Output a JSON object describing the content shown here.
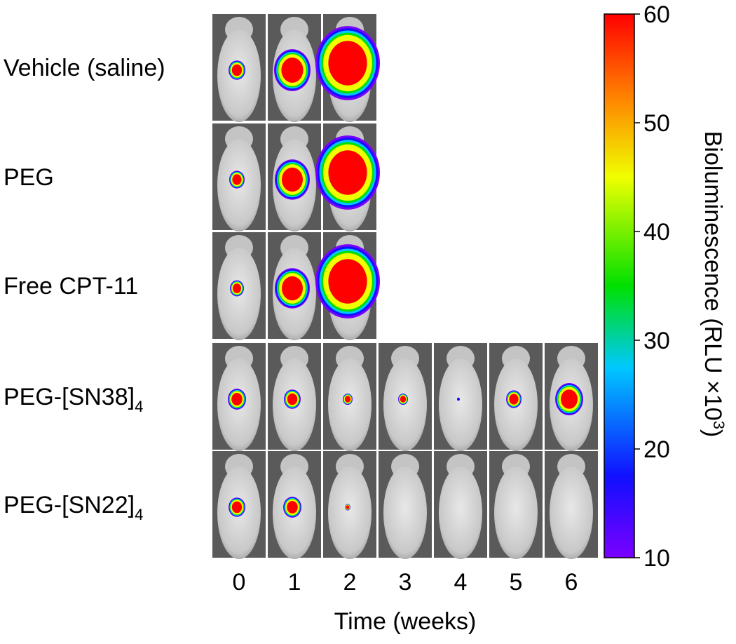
{
  "rows": [
    {
      "label": {
        "text": "Vehicle (saline)"
      }
    },
    {
      "label": {
        "text": "PEG"
      }
    },
    {
      "label": {
        "text": "Free CPT-11"
      }
    },
    {
      "label": {
        "text": "PEG-[SN38]",
        "subscript": "4"
      }
    },
    {
      "label": {
        "text": "PEG-[SN22]",
        "subscript": "4"
      }
    }
  ],
  "x_axis": {
    "label": "Time (weeks)",
    "ticks": [
      0,
      1,
      2,
      3,
      4,
      5,
      6
    ]
  },
  "colorbar": {
    "label": "Bioluminescence (RLU ×10",
    "superscript": "3",
    "label_end": ")",
    "lim": [
      10,
      60
    ],
    "ticks": [
      10,
      20,
      30,
      40,
      50,
      60
    ]
  }
}
